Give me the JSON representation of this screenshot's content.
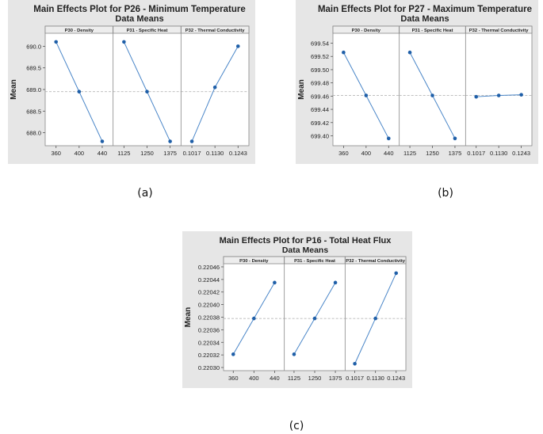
{
  "chart_data": [
    {
      "type": "line",
      "caption": "(a)",
      "title": "Main Effects Plot for P26 - Minimum Temperature",
      "subtitle": "Data Means",
      "ylabel": "Mean",
      "ylim": [
        687.7,
        690.3
      ],
      "yticks": [
        688.0,
        688.5,
        689.0,
        689.5,
        690.0
      ],
      "ytick_labels": [
        "688.0",
        "688.5",
        "689.0",
        "689.5",
        "690.0"
      ],
      "mean_line": 688.95,
      "colors": {
        "line": "#4a86c8",
        "marker": "#1f5fa8",
        "bg": "#e6e6e6",
        "ref": "#aaaaaa"
      },
      "panels": [
        {
          "name": "P30 - Density",
          "categories": [
            "360",
            "400",
            "440"
          ],
          "values": [
            690.1,
            688.95,
            687.8
          ]
        },
        {
          "name": "P31 - Specific Heat",
          "categories": [
            "1125",
            "1250",
            "1375"
          ],
          "values": [
            690.1,
            688.95,
            687.8
          ]
        },
        {
          "name": "P32 - Thermal Conductivity",
          "categories": [
            "0.1017",
            "0.1130",
            "0.1243"
          ],
          "values": [
            687.8,
            689.05,
            690.0
          ]
        }
      ]
    },
    {
      "type": "line",
      "caption": "(b)",
      "title": "Main Effects Plot for P27 - Maximum Temperature",
      "subtitle": "Data Means",
      "ylabel": "Mean",
      "ylim": [
        699.385,
        699.555
      ],
      "yticks": [
        699.4,
        699.42,
        699.44,
        699.46,
        699.48,
        699.5,
        699.52,
        699.54
      ],
      "ytick_labels": [
        "699.40",
        "699.42",
        "699.44",
        "699.46",
        "699.48",
        "699.50",
        "699.52",
        "699.54"
      ],
      "mean_line": 699.461,
      "colors": {
        "line": "#4a86c8",
        "marker": "#1f5fa8",
        "bg": "#e6e6e6",
        "ref": "#aaaaaa"
      },
      "panels": [
        {
          "name": "P30 - Density",
          "categories": [
            "360",
            "400",
            "440"
          ],
          "values": [
            699.526,
            699.461,
            699.396
          ]
        },
        {
          "name": "P31 - Specific Heat",
          "categories": [
            "1125",
            "1250",
            "1375"
          ],
          "values": [
            699.526,
            699.461,
            699.396
          ]
        },
        {
          "name": "P32 - Thermal Conductivity",
          "categories": [
            "0.1017",
            "0.1130",
            "0.1243"
          ],
          "values": [
            699.459,
            699.461,
            699.462
          ]
        }
      ]
    },
    {
      "type": "line",
      "caption": "(c)",
      "title": "Main Effects Plot for P16 - Total Heat Flux",
      "subtitle": "Data Means",
      "ylabel": "Mean",
      "ylim": [
        0.220295,
        0.220465
      ],
      "yticks": [
        0.2203,
        0.22032,
        0.22034,
        0.22036,
        0.22038,
        0.2204,
        0.22042,
        0.22044,
        0.22046
      ],
      "ytick_labels": [
        "0.22030",
        "0.22032",
        "0.22034",
        "0.22036",
        "0.22038",
        "0.22040",
        "0.22042",
        "0.22044",
        "0.22046"
      ],
      "mean_line": 0.220378,
      "colors": {
        "line": "#4a86c8",
        "marker": "#1f5fa8",
        "bg": "#e6e6e6",
        "ref": "#aaaaaa"
      },
      "panels": [
        {
          "name": "P30 - Density",
          "categories": [
            "360",
            "400",
            "440"
          ],
          "values": [
            0.220321,
            0.220378,
            0.220435
          ]
        },
        {
          "name": "P31 - Specific Heat",
          "categories": [
            "1125",
            "1250",
            "1375"
          ],
          "values": [
            0.220321,
            0.220378,
            0.220435
          ]
        },
        {
          "name": "P32 - Thermal Conductivity",
          "categories": [
            "0.1017",
            "0.1130",
            "0.1243"
          ],
          "values": [
            0.220306,
            0.220378,
            0.22045
          ]
        }
      ]
    }
  ]
}
